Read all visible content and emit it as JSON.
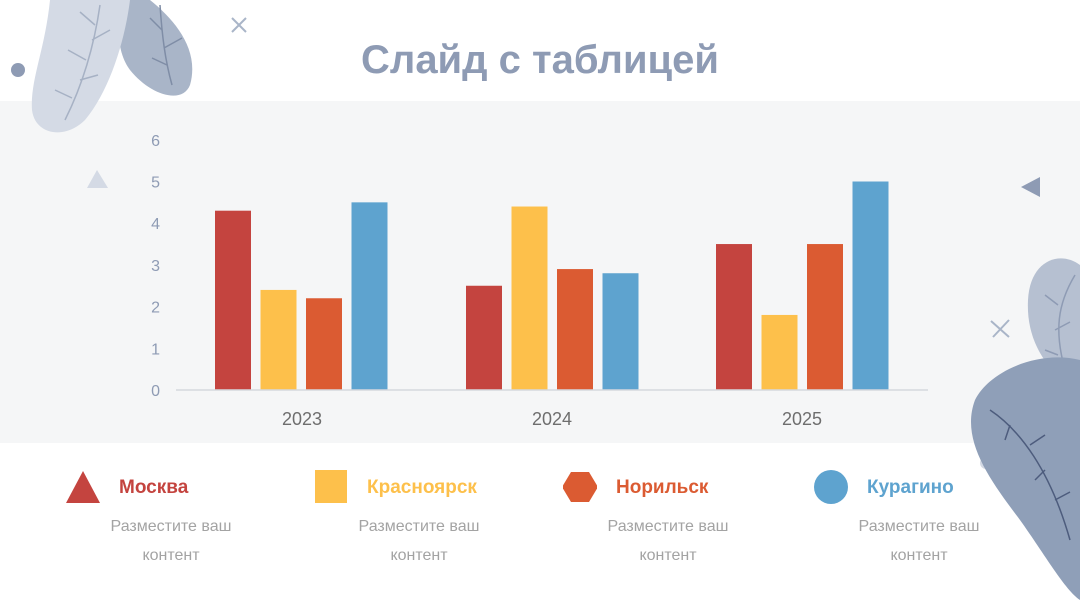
{
  "slide": {
    "title": "Слайд с таблицей"
  },
  "colors": {
    "moscow": "#c4443f",
    "krasnoyarsk": "#fdc04b",
    "norilsk": "#db5b32",
    "kuragino": "#5ea3cf",
    "title": "#8e9bb4",
    "axis_text": "#8e9bb4"
  },
  "chart_data": {
    "type": "bar",
    "categories": [
      "2023",
      "2024",
      "2025"
    ],
    "series": [
      {
        "name": "Москва",
        "values": [
          4.3,
          2.5,
          3.5
        ],
        "color": "#c4443f"
      },
      {
        "name": "Красноярск",
        "values": [
          2.4,
          4.4,
          1.8
        ],
        "color": "#fdc04b"
      },
      {
        "name": "Норильск",
        "values": [
          2.2,
          2.9,
          3.5
        ],
        "color": "#db5b32"
      },
      {
        "name": "Курагино",
        "values": [
          4.5,
          2.8,
          5.0
        ],
        "color": "#5ea3cf"
      }
    ],
    "yticks": [
      "0",
      "1",
      "2",
      "3",
      "4",
      "5",
      "6"
    ],
    "ylim": [
      0,
      6
    ],
    "grid": false,
    "legend_position": "bottom"
  },
  "legend": [
    {
      "label": "Москва",
      "description": "Разместите ваш контент",
      "icon": "triangle-icon",
      "color": "#c4443f"
    },
    {
      "label": "Красноярск",
      "description": "Разместите ваш контент",
      "icon": "square-icon",
      "color": "#fdc04b"
    },
    {
      "label": "Норильск",
      "description": "Разместите ваш контент",
      "icon": "hexagon-icon",
      "color": "#db5b32"
    },
    {
      "label": "Курагино",
      "description": "Разместите ваш контент",
      "icon": "circle-icon",
      "color": "#5ea3cf"
    }
  ]
}
